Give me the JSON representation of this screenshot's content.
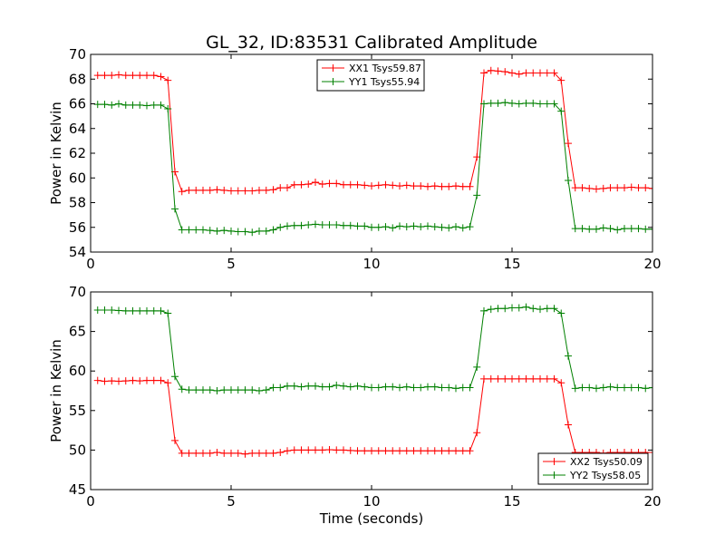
{
  "figure": {
    "title": "GL_32, ID:83531 Calibrated Amplitude"
  },
  "chart_data": [
    {
      "type": "line",
      "title": "GL_32, ID:83531 Calibrated Amplitude",
      "xlabel": "",
      "ylabel": "Power in Kelvin",
      "xlim": [
        0,
        20
      ],
      "ylim": [
        54,
        70
      ],
      "xticks": [
        "0",
        "5",
        "10",
        "15",
        "20"
      ],
      "yticks": [
        "54",
        "56",
        "58",
        "60",
        "62",
        "64",
        "66",
        "68",
        "70"
      ],
      "xtick_values": [
        0,
        5,
        10,
        15,
        20
      ],
      "ytick_values": [
        54,
        56,
        58,
        60,
        62,
        64,
        66,
        68,
        70
      ],
      "grid": false,
      "legend_position": "top-center",
      "marker": "+",
      "x": [
        0.25,
        0.5,
        0.75,
        1.0,
        1.25,
        1.5,
        1.75,
        2.0,
        2.25,
        2.5,
        2.75,
        3.0,
        3.25,
        3.5,
        3.75,
        4.0,
        4.25,
        4.5,
        4.75,
        5.0,
        5.25,
        5.5,
        5.75,
        6.0,
        6.25,
        6.5,
        6.75,
        7.0,
        7.25,
        7.5,
        7.75,
        8.0,
        8.25,
        8.5,
        8.75,
        9.0,
        9.25,
        9.5,
        9.75,
        10.0,
        10.25,
        10.5,
        10.75,
        11.0,
        11.25,
        11.5,
        11.75,
        12.0,
        12.25,
        12.5,
        12.75,
        13.0,
        13.25,
        13.5,
        13.75,
        14.0,
        14.25,
        14.5,
        14.75,
        15.0,
        15.25,
        15.5,
        15.75,
        16.0,
        16.25,
        16.5,
        16.75,
        17.0,
        17.25,
        17.5,
        17.75,
        18.0,
        18.25,
        18.5,
        18.75,
        19.0,
        19.25,
        19.5,
        19.75,
        20.0
      ],
      "series": [
        {
          "name": "XX1 Tsys59.87",
          "color": "#ff0000",
          "values": [
            68.3,
            68.3,
            68.3,
            68.35,
            68.3,
            68.3,
            68.3,
            68.3,
            68.3,
            68.2,
            67.9,
            60.5,
            58.9,
            59.0,
            59.0,
            59.0,
            59.0,
            59.05,
            59.0,
            58.95,
            58.95,
            58.95,
            58.95,
            59.0,
            59.0,
            59.05,
            59.2,
            59.2,
            59.45,
            59.45,
            59.5,
            59.65,
            59.5,
            59.55,
            59.55,
            59.45,
            59.45,
            59.45,
            59.4,
            59.35,
            59.4,
            59.45,
            59.4,
            59.35,
            59.4,
            59.35,
            59.35,
            59.3,
            59.35,
            59.3,
            59.3,
            59.35,
            59.3,
            59.3,
            61.7,
            68.5,
            68.7,
            68.65,
            68.6,
            68.5,
            68.4,
            68.5,
            68.5,
            68.5,
            68.5,
            68.5,
            67.9,
            62.8,
            59.2,
            59.2,
            59.15,
            59.1,
            59.15,
            59.2,
            59.2,
            59.2,
            59.25,
            59.2,
            59.2,
            59.15
          ]
        },
        {
          "name": "YY1 Tsys55.94",
          "color": "#008000",
          "values": [
            65.95,
            65.95,
            65.9,
            66.0,
            65.9,
            65.9,
            65.9,
            65.85,
            65.9,
            65.9,
            65.6,
            57.5,
            55.8,
            55.8,
            55.8,
            55.8,
            55.75,
            55.7,
            55.75,
            55.7,
            55.65,
            55.65,
            55.6,
            55.7,
            55.7,
            55.8,
            56.0,
            56.1,
            56.15,
            56.15,
            56.2,
            56.25,
            56.2,
            56.2,
            56.2,
            56.15,
            56.15,
            56.1,
            56.1,
            56.0,
            56.0,
            56.05,
            55.95,
            56.1,
            56.05,
            56.1,
            56.05,
            56.1,
            56.05,
            56.0,
            55.95,
            56.05,
            55.95,
            56.05,
            58.6,
            66.0,
            66.05,
            66.05,
            66.1,
            66.05,
            66.0,
            66.05,
            66.05,
            66.0,
            66.0,
            66.0,
            65.4,
            59.8,
            55.9,
            55.9,
            55.85,
            55.85,
            55.95,
            55.9,
            55.8,
            55.9,
            55.9,
            55.9,
            55.85,
            55.85
          ]
        }
      ]
    },
    {
      "type": "line",
      "title": "",
      "xlabel": "Time (seconds)",
      "ylabel": "Power in Kelvin",
      "xlim": [
        0,
        20
      ],
      "ylim": [
        45,
        70
      ],
      "xticks": [
        "0",
        "5",
        "10",
        "15",
        "20"
      ],
      "yticks": [
        "45",
        "50",
        "55",
        "60",
        "65",
        "70"
      ],
      "xtick_values": [
        0,
        5,
        10,
        15,
        20
      ],
      "ytick_values": [
        45,
        50,
        55,
        60,
        65,
        70
      ],
      "grid": false,
      "legend_position": "bottom-right",
      "marker": "+",
      "x": [
        0.25,
        0.5,
        0.75,
        1.0,
        1.25,
        1.5,
        1.75,
        2.0,
        2.25,
        2.5,
        2.75,
        3.0,
        3.25,
        3.5,
        3.75,
        4.0,
        4.25,
        4.5,
        4.75,
        5.0,
        5.25,
        5.5,
        5.75,
        6.0,
        6.25,
        6.5,
        6.75,
        7.0,
        7.25,
        7.5,
        7.75,
        8.0,
        8.25,
        8.5,
        8.75,
        9.0,
        9.25,
        9.5,
        9.75,
        10.0,
        10.25,
        10.5,
        10.75,
        11.0,
        11.25,
        11.5,
        11.75,
        12.0,
        12.25,
        12.5,
        12.75,
        13.0,
        13.25,
        13.5,
        13.75,
        14.0,
        14.25,
        14.5,
        14.75,
        15.0,
        15.25,
        15.5,
        15.75,
        16.0,
        16.25,
        16.5,
        16.75,
        17.0,
        17.25,
        17.5,
        17.75,
        18.0,
        18.25,
        18.5,
        18.75,
        19.0,
        19.25,
        19.5,
        19.75,
        20.0
      ],
      "series": [
        {
          "name": "XX2 Tsys50.09",
          "color": "#ff0000",
          "values": [
            58.8,
            58.7,
            58.75,
            58.7,
            58.75,
            58.8,
            58.75,
            58.8,
            58.8,
            58.8,
            58.5,
            51.2,
            49.6,
            49.6,
            49.6,
            49.6,
            49.6,
            49.7,
            49.6,
            49.6,
            49.6,
            49.5,
            49.6,
            49.6,
            49.6,
            49.6,
            49.7,
            49.9,
            50.0,
            50.0,
            50.0,
            50.0,
            50.0,
            50.05,
            50.0,
            50.0,
            49.95,
            49.9,
            49.9,
            49.9,
            49.9,
            49.9,
            49.9,
            49.9,
            49.9,
            49.9,
            49.9,
            49.9,
            49.9,
            49.9,
            49.9,
            49.9,
            49.9,
            49.9,
            52.2,
            59.0,
            59.0,
            59.0,
            59.0,
            59.0,
            59.0,
            59.0,
            59.0,
            59.0,
            59.0,
            59.0,
            58.5,
            53.2,
            49.7,
            49.7,
            49.7,
            49.7,
            49.6,
            49.7,
            49.7,
            49.7,
            49.7,
            49.7,
            49.7,
            49.7
          ]
        },
        {
          "name": "YY2 Tsys58.05",
          "color": "#008000",
          "values": [
            67.7,
            67.7,
            67.7,
            67.65,
            67.6,
            67.6,
            67.6,
            67.6,
            67.6,
            67.6,
            67.3,
            59.3,
            57.7,
            57.6,
            57.6,
            57.6,
            57.6,
            57.5,
            57.6,
            57.6,
            57.6,
            57.6,
            57.6,
            57.5,
            57.6,
            57.9,
            57.9,
            58.1,
            58.1,
            58.0,
            58.1,
            58.1,
            58.0,
            58.0,
            58.2,
            58.1,
            58.0,
            58.1,
            58.0,
            57.9,
            57.9,
            58.0,
            58.0,
            57.9,
            58.0,
            57.9,
            57.9,
            58.0,
            58.0,
            57.9,
            57.9,
            57.8,
            57.9,
            57.9,
            60.5,
            67.6,
            67.8,
            67.9,
            67.9,
            68.0,
            68.0,
            68.1,
            67.9,
            67.8,
            67.9,
            67.9,
            67.3,
            61.9,
            57.8,
            57.9,
            57.9,
            57.8,
            57.9,
            58.0,
            57.9,
            57.9,
            57.9,
            57.9,
            57.8,
            57.9
          ]
        }
      ]
    }
  ]
}
